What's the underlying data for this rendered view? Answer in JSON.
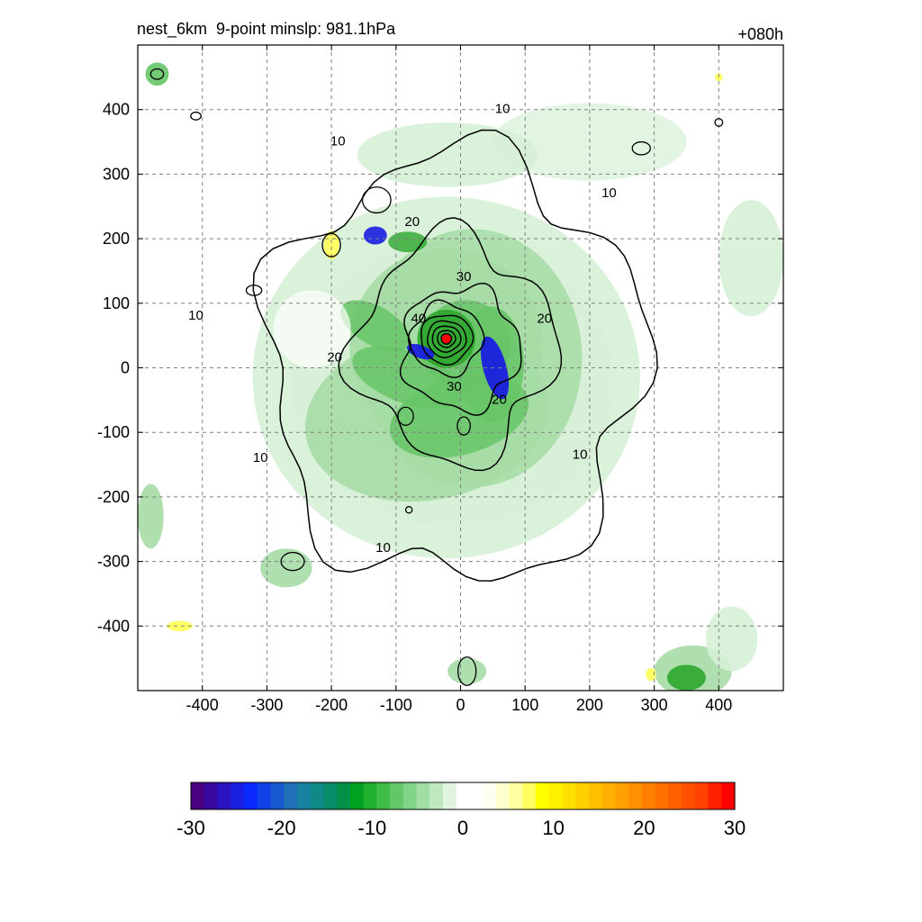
{
  "chart_data": {
    "type": "contour",
    "title": "nest_6km  9-point minslp: 981.1hPa",
    "forecast_hour": "+080h",
    "xlim": [
      -500,
      500
    ],
    "ylim": [
      -500,
      500
    ],
    "x_ticks": [
      -400,
      -300,
      -200,
      -100,
      0,
      100,
      200,
      300,
      400
    ],
    "y_ticks": [
      400,
      300,
      200,
      100,
      0,
      -100,
      -200,
      -300,
      -400
    ],
    "grid": true,
    "center_marker": {
      "x": -22,
      "y": 45,
      "color": "#ff0000"
    },
    "contour_lines": [
      {
        "level": 10,
        "label": "10"
      },
      {
        "level": 20,
        "label": "20"
      },
      {
        "level": 30,
        "label": "30"
      },
      {
        "level": 40,
        "label": "40"
      }
    ],
    "colorbar": {
      "min": -30,
      "max": 30,
      "tick_labels": [
        "-30",
        "-20",
        "-10",
        "0",
        "10",
        "20",
        "30"
      ],
      "colors": [
        "#4b0082",
        "#3a0aa0",
        "#2a14c0",
        "#1a1ee0",
        "#0a28ff",
        "#1040e8",
        "#1858d0",
        "#2070b8",
        "#1880a0",
        "#108888",
        "#088c68",
        "#049048",
        "#00a020",
        "#20b030",
        "#40bc48",
        "#60c868",
        "#80d488",
        "#a0dea4",
        "#c0e8c0",
        "#e0f4e0",
        "#ffffff",
        "#ffffff",
        "#fffff0",
        "#ffffd0",
        "#ffffa0",
        "#ffff60",
        "#ffff00",
        "#fff000",
        "#ffe000",
        "#ffd000",
        "#ffc000",
        "#ffb000",
        "#ffa000",
        "#ff9000",
        "#ff8000",
        "#ff7000",
        "#ff6000",
        "#ff5000",
        "#ff4000",
        "#ff2000",
        "#ff0000"
      ]
    }
  }
}
